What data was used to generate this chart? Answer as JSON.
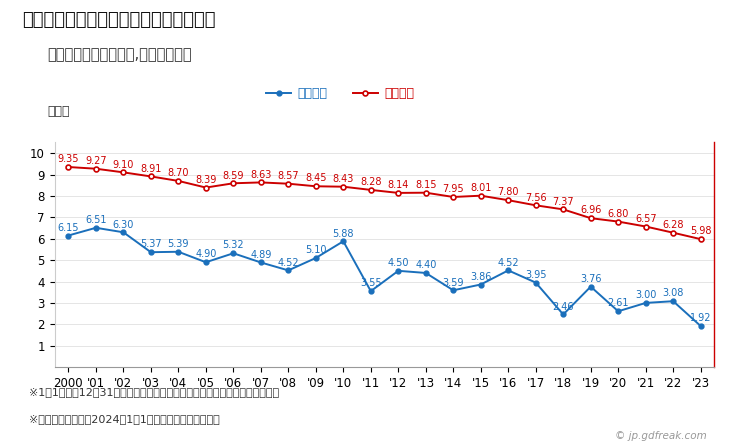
{
  "title": "鰺ヶ沢町の人口千人当たり出生数の推移",
  "subtitle": "（住民基本台帳ベース,日本人住民）",
  "ylabel": "（人）",
  "legend_local": "鰺ヶ沢町",
  "legend_national": "全国平均",
  "footnote1": "※1月1日から12月31日までの外国人を除く日本人住民の千人当たり出生数。",
  "footnote2": "※市区町村の場合は2024年1月1日時点の市区町村境界。",
  "copyright": "© jp.gdfreak.com",
  "years": [
    2000,
    2001,
    2002,
    2003,
    2004,
    2005,
    2006,
    2007,
    2008,
    2009,
    2010,
    2011,
    2012,
    2013,
    2014,
    2015,
    2016,
    2017,
    2018,
    2019,
    2020,
    2021,
    2022,
    2023
  ],
  "local_values": [
    6.15,
    6.51,
    6.3,
    5.37,
    5.39,
    4.9,
    5.32,
    4.89,
    4.52,
    5.1,
    5.88,
    3.55,
    4.5,
    4.4,
    3.59,
    3.86,
    4.52,
    3.95,
    2.46,
    3.76,
    2.61,
    3.0,
    3.08,
    1.92
  ],
  "national_values": [
    9.35,
    9.27,
    9.1,
    8.91,
    8.7,
    8.39,
    8.59,
    8.63,
    8.57,
    8.45,
    8.43,
    8.28,
    8.14,
    8.15,
    7.95,
    8.01,
    7.8,
    7.56,
    7.37,
    6.96,
    6.8,
    6.57,
    6.28,
    5.98
  ],
  "local_color": "#1a6fbb",
  "national_color": "#cc0000",
  "xlabels": [
    "2000",
    "'01",
    "'02",
    "'03",
    "'04",
    "'05",
    "'06",
    "'07",
    "'08",
    "'09",
    "'10",
    "'11",
    "'12",
    "'13",
    "'14",
    "'15",
    "'16",
    "'17",
    "'18",
    "'19",
    "'20",
    "'21",
    "'22",
    "'23"
  ],
  "ylim": [
    0,
    10.5
  ],
  "yticks": [
    1,
    2,
    3,
    4,
    5,
    6,
    7,
    8,
    9,
    10
  ],
  "background_color": "#ffffff",
  "label_fontsize": 7.0,
  "title_fontsize": 13,
  "subtitle_fontsize": 10.5,
  "axis_fontsize": 8.5,
  "footnote_fontsize": 8.0
}
